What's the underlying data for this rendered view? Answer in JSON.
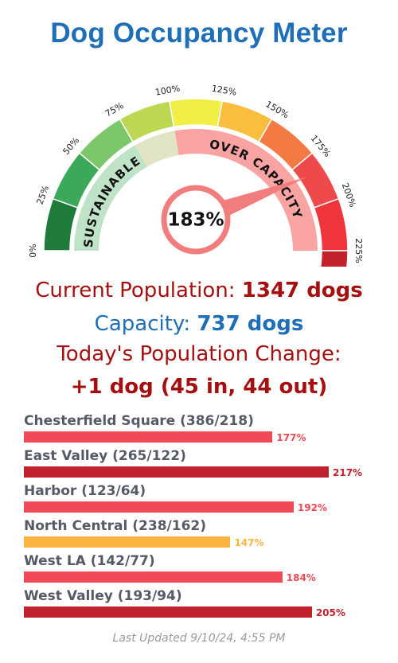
{
  "title": "Dog Occupancy Meter",
  "gauge": {
    "value_label": "183%",
    "value_percent": 183,
    "max_percent": 225,
    "ticks": [
      "0%",
      "25%",
      "50%",
      "75%",
      "100%",
      "125%",
      "150%",
      "175%",
      "200%",
      "225%"
    ],
    "zone_labels": {
      "sustainable": "SUSTAINABLE",
      "over_capacity": "OVER CAPACITY"
    },
    "segment_colors": [
      "#1e7b3a",
      "#3ca85a",
      "#7cc76a",
      "#bcd853",
      "#f2ee48",
      "#fbbd3e",
      "#f47a44",
      "#ee4a4c",
      "#f0353c",
      "#c1212b"
    ],
    "sustainable_band_color": "#bfe3c6",
    "sustainable_light_color": "#e1e5c5",
    "over_capacity_band_color": "#f9a3a3",
    "needle_color": "#f27d7d"
  },
  "stats": {
    "population_label": "Current Population:",
    "population_value": "1347 dogs",
    "capacity_label": "Capacity:",
    "capacity_value": "737 dogs",
    "change_label": "Today's Population Change:",
    "change_value": "+1 dog (45 in, 44 out)"
  },
  "shelters": [
    {
      "label": "Chesterfield Square (386/218)",
      "percent": 177,
      "pct_label": "177%",
      "color": "#ef4a55"
    },
    {
      "label": "East Valley (265/122)",
      "percent": 217,
      "pct_label": "217%",
      "color": "#c1212b"
    },
    {
      "label": "Harbor (123/64)",
      "percent": 192,
      "pct_label": "192%",
      "color": "#ef4a55"
    },
    {
      "label": "North Central (238/162)",
      "percent": 147,
      "pct_label": "147%",
      "color": "#fbb53f"
    },
    {
      "label": "West LA (142/77)",
      "percent": 184,
      "pct_label": "184%",
      "color": "#ef4a55"
    },
    {
      "label": "West Valley (193/94)",
      "percent": 205,
      "pct_label": "205%",
      "color": "#c1212b"
    }
  ],
  "last_updated": "Last Updated 9/10/24, 4:55 PM"
}
